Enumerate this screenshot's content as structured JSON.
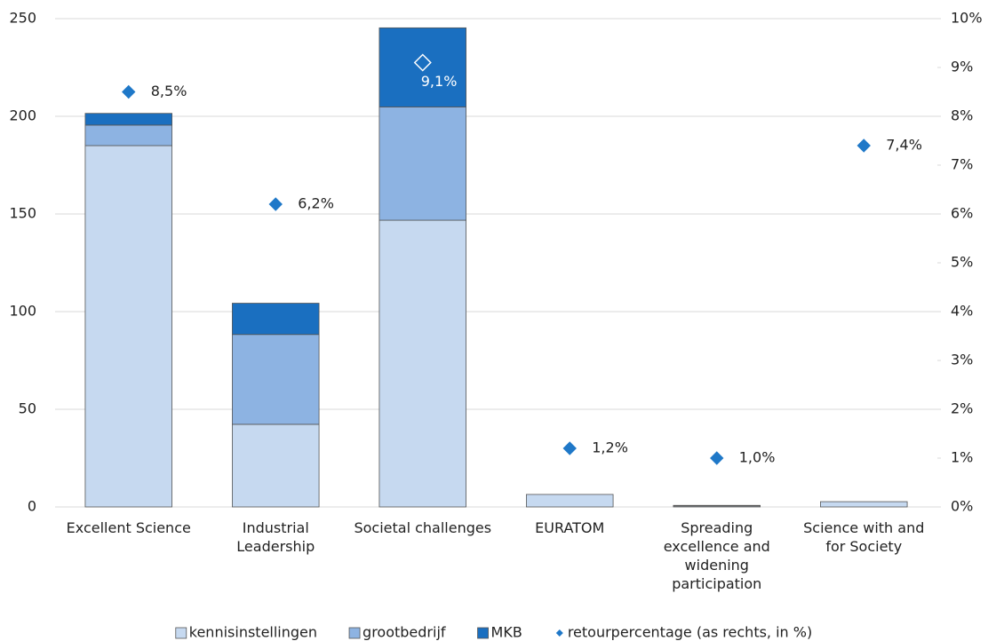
{
  "chart_data": {
    "type": "bar",
    "stacked": true,
    "categories": [
      "Excellent Science",
      "Industrial Leadership",
      "Societal challenges",
      "EURATOM",
      "Spreading excellence and widening participation",
      "Science with and for Society"
    ],
    "series": [
      {
        "name": "kennisinstellingen",
        "type": "bar",
        "color": "#c6d9f0",
        "values": [
          185,
          42.3,
          146.8,
          6.4,
          0.5,
          2.7
        ]
      },
      {
        "name": "grootbedrijf",
        "type": "bar",
        "color": "#8db3e2",
        "values": [
          10.5,
          46,
          58,
          0,
          0.2,
          0
        ]
      },
      {
        "name": "MKB",
        "type": "bar",
        "color": "#1a6fc0",
        "values": [
          6,
          16,
          40.5,
          0,
          0.1,
          0
        ]
      },
      {
        "name": "retourpercentage (as rechts, in %)",
        "type": "scatter",
        "axis": "y2",
        "color": "#1f78c8",
        "values": [
          8.5,
          6.2,
          9.1,
          1.2,
          1.0,
          7.4
        ],
        "value_labels": [
          "8,5%",
          "6,2%",
          "9,1%",
          "1,2%",
          "1,0%",
          "7,4%"
        ]
      }
    ],
    "ylim": [
      0,
      250
    ],
    "yticks": [
      0,
      50,
      100,
      150,
      200,
      250
    ],
    "y2lim": [
      0,
      10
    ],
    "y2ticks": [
      {
        "value": 0,
        "label": "0%"
      },
      {
        "value": 1,
        "label": "1%"
      },
      {
        "value": 2,
        "label": "2%"
      },
      {
        "value": 3,
        "label": "3%"
      },
      {
        "value": 4,
        "label": "4%"
      },
      {
        "value": 5,
        "label": "5%"
      },
      {
        "value": 6,
        "label": "6%"
      },
      {
        "value": 7,
        "label": "7%"
      },
      {
        "value": 8,
        "label": "8%"
      },
      {
        "value": 9,
        "label": "9%"
      },
      {
        "value": 10,
        "label": "10%"
      }
    ],
    "grid": true,
    "legend": "bottom"
  }
}
